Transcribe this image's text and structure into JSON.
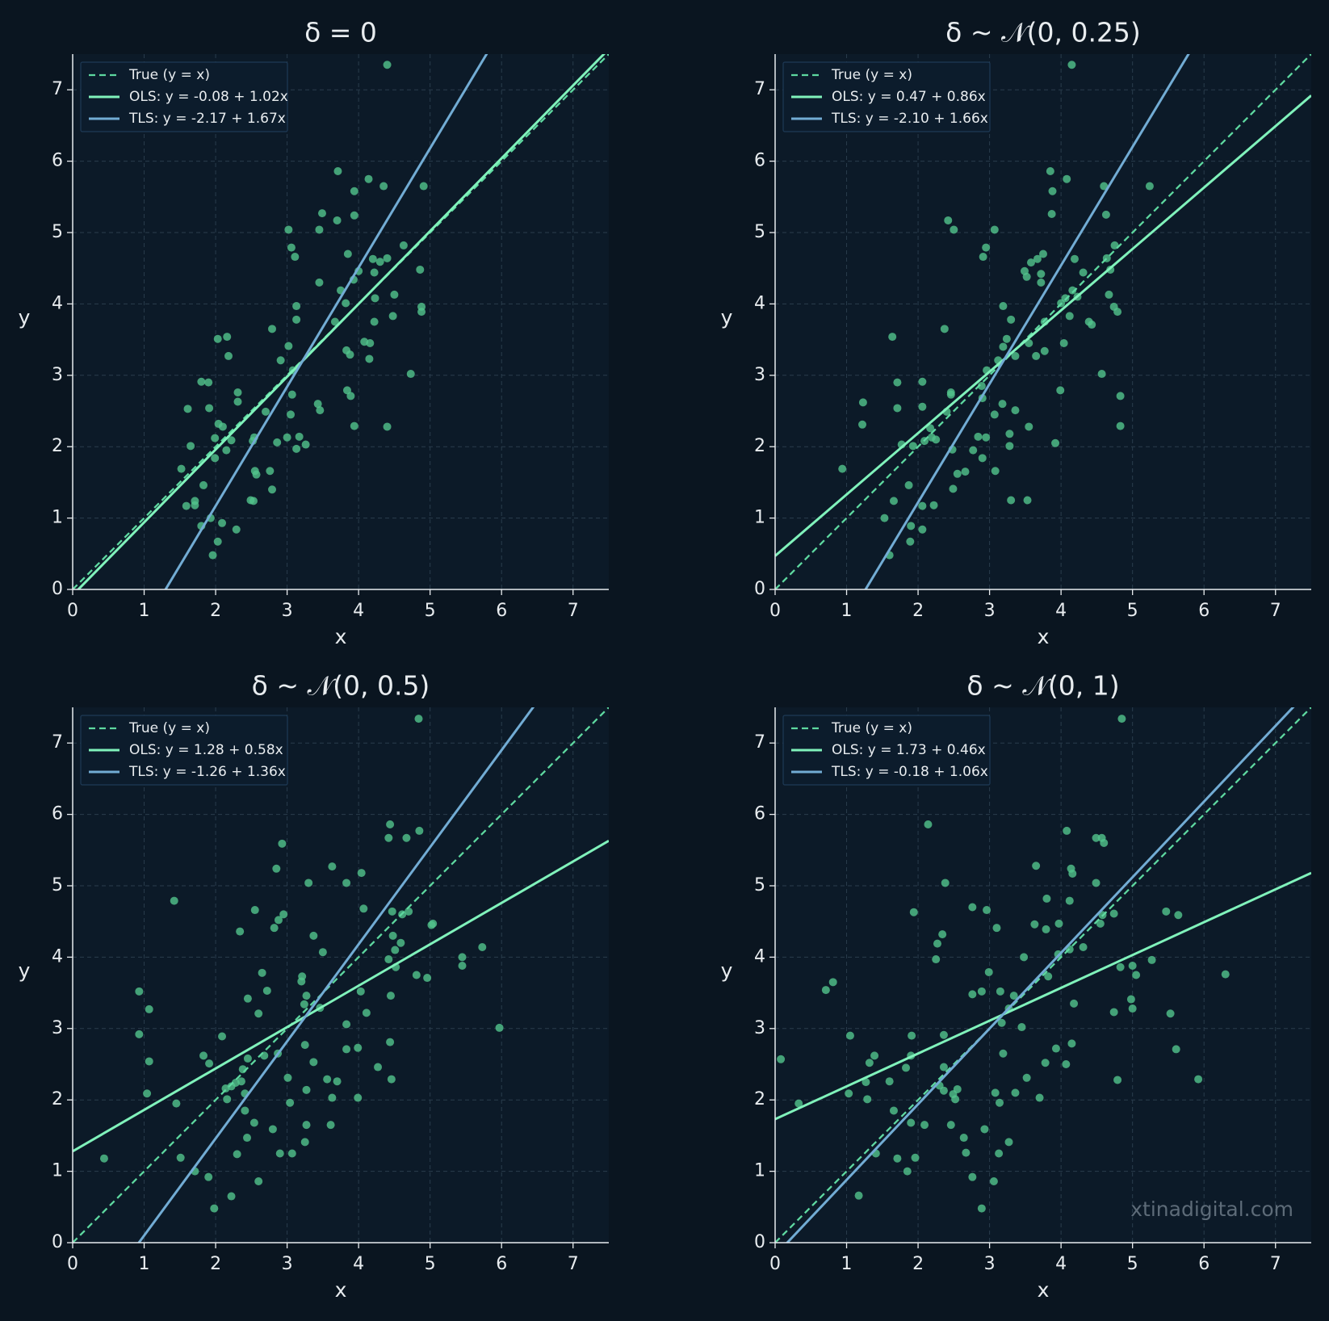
{
  "watermark": "xtinadigital.com",
  "chart_data": [
    {
      "type": "scatter",
      "title": "δ = 0",
      "xlabel": "x",
      "ylabel": "y",
      "xlim": [
        0,
        7.5
      ],
      "ylim": [
        0,
        7.5
      ],
      "xticks": [
        0,
        1,
        2,
        3,
        4,
        5,
        6,
        7
      ],
      "yticks": [
        0,
        1,
        2,
        3,
        4,
        5,
        6,
        7
      ],
      "grid": true,
      "legend": "upper left",
      "color": "#52c48c",
      "x": [
        4.4,
        3.71,
        4.14,
        4.35,
        4.91,
        3.94,
        3.49,
        3.94,
        3.7,
        3.02,
        3.45,
        3.06,
        3.11,
        3.85,
        4.63,
        4.2,
        4.4,
        4.3,
        4.22,
        4.0,
        4.86,
        3.93,
        3.45,
        3.75,
        4.5,
        4.23,
        3.82,
        3.13,
        4.88,
        4.88,
        4.48,
        3.13,
        3.67,
        4.22,
        2.79,
        4.08,
        4.16,
        3.02,
        2.03,
        2.16,
        3.83,
        3.88,
        2.18,
        4.15,
        2.91,
        4.73,
        3.08,
        1.9,
        1.8,
        3.07,
        3.84,
        3.89,
        2.31,
        2.31,
        3.43,
        1.61,
        1.91,
        2.7,
        3.46,
        3.05,
        2.04,
        2.1,
        3.94,
        4.4,
        3.0,
        3.17,
        2.22,
        1.99,
        2.54,
        2.52,
        2.86,
        3.26,
        3.13,
        1.65,
        2.15,
        1.99,
        1.52,
        2.55,
        2.57,
        2.76,
        1.83,
        1.71,
        1.59,
        1.71,
        2.49,
        2.53,
        2.79,
        1.93,
        1.8,
        2.29,
        2.03,
        1.96,
        2.09
      ],
      "values": [
        7.35,
        5.86,
        5.75,
        5.65,
        5.65,
        5.58,
        5.27,
        5.24,
        5.17,
        5.04,
        5.04,
        4.79,
        4.66,
        4.7,
        4.82,
        4.63,
        4.64,
        4.59,
        4.44,
        4.46,
        4.48,
        4.34,
        4.3,
        4.19,
        4.13,
        4.08,
        4.01,
        3.97,
        3.96,
        3.89,
        3.83,
        3.78,
        3.75,
        3.75,
        3.65,
        3.47,
        3.45,
        3.41,
        3.51,
        3.54,
        3.35,
        3.29,
        3.27,
        3.23,
        3.21,
        3.02,
        3.07,
        2.9,
        2.91,
        2.73,
        2.79,
        2.71,
        2.76,
        2.63,
        2.6,
        2.53,
        2.54,
        2.49,
        2.51,
        2.45,
        2.32,
        2.28,
        2.29,
        2.28,
        2.13,
        2.14,
        2.09,
        2.12,
        2.13,
        2.08,
        2.06,
        2.03,
        1.97,
        2.01,
        1.95,
        1.84,
        1.69,
        1.66,
        1.61,
        1.66,
        1.46,
        1.24,
        1.17,
        1.18,
        1.25,
        1.24,
        1.4,
        1.0,
        0.89,
        0.84,
        0.67,
        0.48,
        0.93
      ],
      "lines": [
        {
          "name": "True (y = x)",
          "color": "#5ed8a0",
          "intercept": 0,
          "slope": 1,
          "dashed": true
        },
        {
          "name": "OLS: y = -0.08 + 1.02x",
          "color": "#80f2bb",
          "intercept": -0.08,
          "slope": 1.02,
          "dashed": false
        },
        {
          "name": "TLS: y = -2.17 + 1.67x",
          "color": "#72acd4",
          "intercept": -2.17,
          "slope": 1.67,
          "dashed": false
        }
      ]
    },
    {
      "type": "scatter",
      "title": "δ ~ 𝒩(0, 0.25)",
      "xlabel": "x",
      "ylabel": "y",
      "xlim": [
        0,
        7.5
      ],
      "ylim": [
        0,
        7.5
      ],
      "xticks": [
        0,
        1,
        2,
        3,
        4,
        5,
        6,
        7
      ],
      "yticks": [
        0,
        1,
        2,
        3,
        4,
        5,
        6,
        7
      ],
      "grid": true,
      "legend": "upper left",
      "color": "#52c48c",
      "x": [
        4.15,
        3.85,
        4.08,
        4.6,
        5.24,
        3.88,
        2.42,
        2.5,
        3.07,
        2.95,
        2.91,
        3.87,
        4.63,
        4.75,
        3.75,
        4.19,
        4.64,
        3.67,
        3.58,
        3.49,
        3.72,
        4.69,
        3.52,
        3.72,
        4.31,
        4.16,
        4.23,
        4.06,
        4.0,
        4.67,
        4.74,
        4.79,
        3.19,
        4.12,
        3.3,
        3.77,
        4.39,
        4.43,
        2.37,
        1.64,
        4.04,
        3.24,
        3.19,
        3.55,
        3.77,
        3.36,
        3.65,
        3.12,
        2.96,
        4.57,
        1.71,
        2.06,
        2.89,
        3.99,
        2.9,
        4.83,
        1.23,
        1.71,
        2.06,
        2.46,
        2.46,
        3.18,
        3.36,
        3.07,
        2.4,
        1.22,
        3.55,
        4.83,
        2.17,
        2.19,
        2.25,
        2.84,
        2.95,
        3.28,
        3.28,
        2.09,
        1.93,
        1.77,
        3.92,
        2.77,
        2.9,
        2.48,
        0.94,
        2.66,
        2.55,
        3.08,
        1.87,
        2.49,
        1.66,
        3.3,
        3.53,
        2.22,
        2.06,
        1.53,
        1.9,
        2.06,
        1.89,
        1.6
      ],
      "values": [
        7.35,
        5.86,
        5.75,
        5.65,
        5.65,
        5.58,
        5.17,
        5.04,
        5.04,
        4.79,
        4.66,
        5.26,
        5.25,
        4.82,
        4.7,
        4.63,
        4.64,
        4.63,
        4.58,
        4.46,
        4.42,
        4.48,
        4.38,
        4.3,
        4.44,
        4.19,
        4.1,
        4.08,
        4.01,
        4.13,
        3.96,
        3.89,
        3.97,
        3.83,
        3.78,
        3.75,
        3.75,
        3.71,
        3.65,
        3.54,
        3.45,
        3.51,
        3.4,
        3.45,
        3.34,
        3.27,
        3.27,
        3.21,
        3.07,
        3.02,
        2.9,
        2.91,
        2.85,
        2.79,
        2.68,
        2.71,
        2.62,
        2.54,
        2.56,
        2.76,
        2.73,
        2.6,
        2.51,
        2.45,
        2.49,
        2.31,
        2.28,
        2.29,
        2.26,
        2.13,
        2.1,
        2.14,
        2.13,
        2.18,
        2.01,
        2.08,
        2.01,
        2.03,
        2.05,
        1.95,
        1.84,
        1.96,
        1.69,
        1.65,
        1.62,
        1.66,
        1.46,
        1.41,
        1.24,
        1.25,
        1.25,
        1.18,
        1.17,
        1.0,
        0.89,
        0.84,
        0.67,
        0.48
      ],
      "lines": [
        {
          "name": "True (y = x)",
          "color": "#5ed8a0",
          "intercept": 0,
          "slope": 1,
          "dashed": true
        },
        {
          "name": "OLS: y = 0.47 + 0.86x",
          "color": "#80f2bb",
          "intercept": 0.47,
          "slope": 0.86,
          "dashed": false
        },
        {
          "name": "TLS: y = -2.10 + 1.66x",
          "color": "#72acd4",
          "intercept": -2.1,
          "slope": 1.66,
          "dashed": false
        }
      ]
    },
    {
      "type": "scatter",
      "title": "δ ~ 𝒩(0, 0.5)",
      "xlabel": "x",
      "ylabel": "y",
      "xlim": [
        0,
        7.5
      ],
      "ylim": [
        0,
        7.5
      ],
      "xticks": [
        0,
        1,
        2,
        3,
        4,
        5,
        6,
        7
      ],
      "yticks": [
        0,
        1,
        2,
        3,
        4,
        5,
        6,
        7
      ],
      "grid": true,
      "legend": "upper left",
      "color": "#52c48c",
      "x": [
        4.84,
        4.44,
        4.42,
        4.67,
        4.85,
        2.93,
        2.85,
        3.63,
        4.04,
        3.3,
        3.83,
        1.42,
        2.55,
        4.07,
        4.47,
        4.61,
        4.7,
        2.95,
        2.88,
        2.82,
        2.34,
        5.04,
        5.02,
        3.37,
        4.48,
        4.59,
        4.51,
        3.21,
        3.2,
        3.5,
        4.42,
        4.52,
        5.45,
        5.45,
        5.73,
        4.81,
        4.96,
        2.65,
        2.72,
        4.03,
        0.93,
        1.07,
        3.27,
        2.45,
        3.24,
        3.46,
        4.11,
        4.45,
        2.6,
        5.97,
        3.83,
        4.44,
        0.93,
        2.09,
        2.87,
        2.68,
        3.25,
        3.83,
        3.99,
        1.07,
        1.83,
        1.91,
        2.45,
        3.37,
        2.38,
        2.28,
        2.36,
        2.14,
        2.22,
        3.01,
        3.56,
        3.7,
        4.27,
        4.46,
        2.16,
        3.27,
        1.04,
        2.41,
        1.45,
        3.04,
        3.63,
        3.99,
        2.41,
        2.54,
        3.27,
        3.61,
        2.44,
        2.8,
        3.25,
        2.9,
        3.07,
        2.3,
        0.44,
        1.51,
        1.71,
        1.9,
        2.6,
        2.22,
        1.98
      ],
      "values": [
        7.34,
        5.86,
        5.67,
        5.67,
        5.77,
        5.59,
        5.24,
        5.27,
        5.18,
        5.04,
        5.04,
        4.79,
        4.66,
        4.68,
        4.64,
        4.6,
        4.64,
        4.6,
        4.52,
        4.41,
        4.36,
        4.47,
        4.45,
        4.3,
        4.3,
        4.2,
        4.1,
        3.73,
        3.66,
        4.07,
        3.97,
        3.86,
        4.0,
        3.88,
        4.14,
        3.75,
        3.71,
        3.78,
        3.53,
        3.52,
        3.52,
        3.27,
        3.46,
        3.42,
        3.34,
        3.29,
        3.22,
        3.46,
        3.21,
        3.01,
        3.06,
        2.81,
        2.92,
        2.89,
        2.65,
        2.62,
        2.77,
        2.71,
        2.73,
        2.54,
        2.62,
        2.51,
        2.58,
        2.53,
        2.43,
        2.24,
        2.26,
        2.16,
        2.19,
        2.31,
        2.29,
        2.26,
        2.46,
        2.29,
        2.01,
        2.14,
        2.09,
        2.09,
        1.95,
        1.96,
        2.03,
        2.03,
        1.85,
        1.68,
        1.65,
        1.65,
        1.47,
        1.59,
        1.41,
        1.25,
        1.25,
        1.24,
        1.18,
        1.19,
        1.0,
        0.92,
        0.86,
        0.65,
        0.48
      ],
      "lines": [
        {
          "name": "True (y = x)",
          "color": "#5ed8a0",
          "intercept": 0,
          "slope": 1,
          "dashed": true
        },
        {
          "name": "OLS: y = 1.28 + 0.58x",
          "color": "#80f2bb",
          "intercept": 1.28,
          "slope": 0.58,
          "dashed": false
        },
        {
          "name": "TLS: y = -1.26 + 1.36x",
          "color": "#72acd4",
          "intercept": -1.26,
          "slope": 1.36,
          "dashed": false
        }
      ]
    },
    {
      "type": "scatter",
      "title": "δ ~ 𝒩(0, 1)",
      "xlabel": "x",
      "ylabel": "y",
      "xlim": [
        0,
        7.5
      ],
      "ylim": [
        0,
        7.5
      ],
      "xticks": [
        0,
        1,
        2,
        3,
        4,
        5,
        6,
        7
      ],
      "yticks": [
        0,
        1,
        2,
        3,
        4,
        5,
        6,
        7
      ],
      "grid": true,
      "legend": "upper left",
      "color": "#52c48c",
      "x": [
        4.85,
        2.14,
        4.08,
        4.49,
        4.57,
        4.6,
        3.65,
        4.14,
        4.16,
        2.38,
        4.49,
        4.12,
        1.94,
        4.74,
        3.8,
        2.76,
        2.96,
        5.47,
        5.64,
        4.58,
        4.55,
        3.63,
        3.79,
        3.97,
        2.34,
        3.1,
        2.27,
        4.31,
        2.25,
        3.48,
        3.96,
        4.12,
        5.27,
        5.0,
        4.83,
        5.05,
        6.3,
        3.82,
        2.99,
        0.71,
        0.81,
        3.34,
        3.15,
        2.76,
        2.89,
        4.18,
        4.98,
        5.0,
        5.53,
        4.74,
        3.27,
        3.17,
        3.45,
        1.05,
        1.91,
        2.36,
        3.93,
        4.15,
        3.19,
        0.08,
        1.39,
        1.9,
        1.83,
        2.36,
        1.32,
        5.61,
        3.78,
        4.07,
        1.27,
        1.6,
        3.52,
        4.79,
        5.92,
        2.3,
        2.55,
        2.36,
        2.49,
        1.03,
        3.08,
        3.36,
        2.52,
        3.7,
        1.29,
        3.14,
        0.33,
        1.9,
        2.09,
        1.66,
        2.46,
        2.93,
        2.64,
        3.27,
        1.41,
        2.67,
        3.13,
        1.71,
        1.96,
        1.85,
        2.76,
        3.06,
        1.17,
        2.89
      ],
      "values": [
        7.34,
        5.86,
        5.77,
        5.67,
        5.67,
        5.6,
        5.28,
        5.24,
        5.17,
        5.04,
        5.04,
        4.79,
        4.63,
        4.61,
        4.82,
        4.7,
        4.66,
        4.64,
        4.59,
        4.59,
        4.47,
        4.46,
        4.39,
        4.47,
        4.32,
        4.41,
        4.19,
        4.14,
        3.97,
        4.0,
        4.04,
        4.11,
        3.96,
        3.88,
        3.86,
        3.75,
        3.76,
        3.73,
        3.79,
        3.54,
        3.65,
        3.46,
        3.52,
        3.48,
        3.52,
        3.35,
        3.41,
        3.28,
        3.21,
        3.23,
        3.28,
        3.08,
        3.02,
        2.9,
        2.9,
        2.91,
        2.72,
        2.79,
        2.65,
        2.57,
        2.62,
        2.62,
        2.45,
        2.46,
        2.52,
        2.71,
        2.52,
        2.5,
        2.25,
        2.26,
        2.31,
        2.28,
        2.29,
        2.2,
        2.15,
        2.13,
        2.08,
        2.09,
        2.1,
        2.1,
        2.01,
        2.03,
        2.01,
        1.96,
        1.95,
        1.68,
        1.65,
        1.85,
        1.65,
        1.59,
        1.47,
        1.41,
        1.25,
        1.26,
        1.25,
        1.18,
        1.19,
        1.0,
        0.92,
        0.86,
        0.66,
        0.48
      ],
      "lines": [
        {
          "name": "True (y = x)",
          "color": "#5ed8a0",
          "intercept": 0,
          "slope": 1,
          "dashed": true
        },
        {
          "name": "OLS: y = 1.73 + 0.46x",
          "color": "#80f2bb",
          "intercept": 1.73,
          "slope": 0.46,
          "dashed": false
        },
        {
          "name": "TLS: y = -0.18 + 1.06x",
          "color": "#72acd4",
          "intercept": -0.18,
          "slope": 1.06,
          "dashed": false
        }
      ]
    }
  ]
}
